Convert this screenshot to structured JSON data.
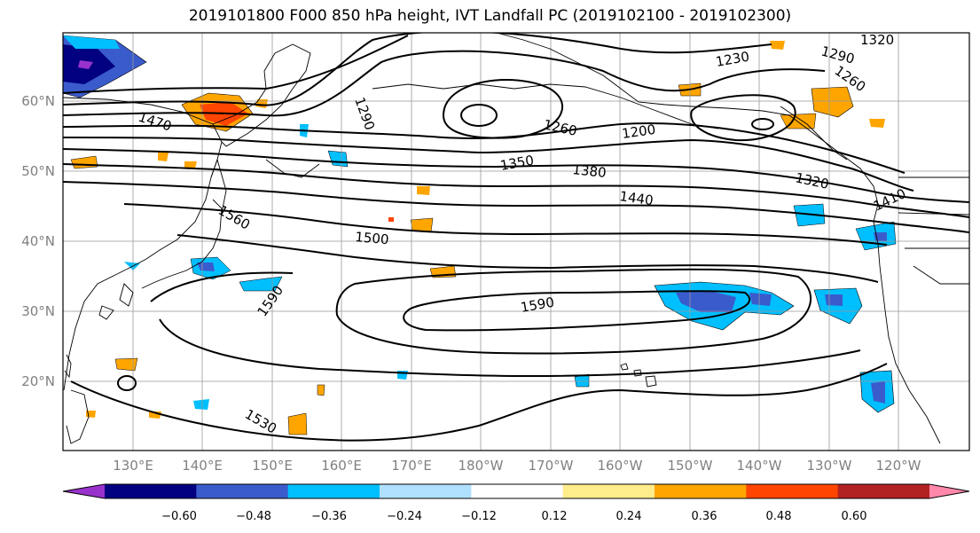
{
  "title": "2019101800 F000 850 hPa height, IVT Landfall PC (2019102100 - 2019102300)",
  "lat_labels": [
    "60°N",
    "50°N",
    "40°N",
    "30°N",
    "20°N"
  ],
  "lon_labels": [
    "130°E",
    "140°E",
    "150°E",
    "160°E",
    "170°E",
    "180°W",
    "170°W",
    "160°W",
    "150°W",
    "140°W",
    "130°W",
    "120°W"
  ],
  "contour_labels": [
    "1320",
    "1290",
    "1230",
    "1260",
    "1290",
    "1470",
    "1260",
    "1200",
    "1350",
    "1380",
    "1320",
    "1440",
    "1410",
    "1560",
    "1500",
    "1590",
    "1590",
    "1530"
  ],
  "colorbar": {
    "ticks": [
      "−0.60",
      "−0.48",
      "−0.36",
      "−0.24",
      "−0.12",
      "0.12",
      "0.24",
      "0.36",
      "0.48",
      "0.60"
    ],
    "colors": [
      "#9932cc",
      "#000080",
      "#3a5bcc",
      "#00bfff",
      "#b0e0ff",
      "#ffffff",
      "#ffec8b",
      "#ffa500",
      "#ff4500",
      "#b22222",
      "#ff88aa"
    ]
  }
}
